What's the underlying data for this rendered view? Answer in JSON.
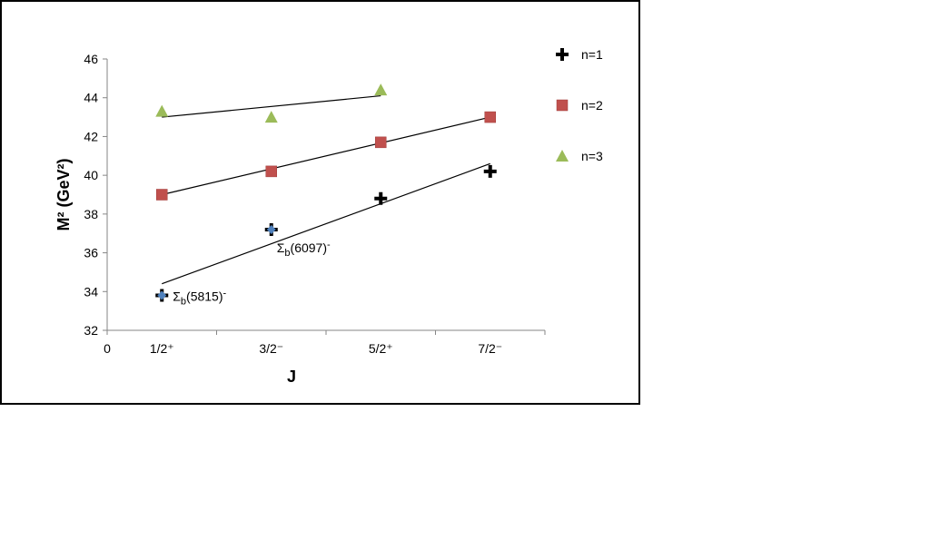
{
  "chart_data": {
    "type": "scatter",
    "xlabel": "J",
    "ylabel": "M² (GeV²)",
    "x_origin_label": "0",
    "categories": [
      "1/2⁺",
      "3/2⁻",
      "5/2⁺",
      "7/2⁻"
    ],
    "ylim": [
      32,
      46
    ],
    "yticks": [
      32,
      34,
      36,
      38,
      40,
      42,
      44,
      46
    ],
    "grid": false,
    "legend_position": "right",
    "series": [
      {
        "name": "n=1",
        "marker": "plus",
        "color": "#000000",
        "points": [
          {
            "x": "1/2⁺",
            "y": 33.8
          },
          {
            "x": "3/2⁻",
            "y": 37.2
          },
          {
            "x": "5/2⁺",
            "y": 38.8
          },
          {
            "x": "7/2⁻",
            "y": 40.2
          }
        ],
        "fit": [
          34.4,
          40.6
        ]
      },
      {
        "name": "n=2",
        "marker": "square",
        "color": "#c0504d",
        "points": [
          {
            "x": "1/2⁺",
            "y": 39.0
          },
          {
            "x": "3/2⁻",
            "y": 40.2
          },
          {
            "x": "5/2⁺",
            "y": 41.7
          },
          {
            "x": "7/2⁻",
            "y": 43.0
          }
        ],
        "fit": [
          39.0,
          43.0
        ]
      },
      {
        "name": "n=3",
        "marker": "triangle",
        "color": "#9bbb59",
        "points": [
          {
            "x": "1/2⁺",
            "y": 43.3
          },
          {
            "x": "3/2⁻",
            "y": 43.0
          },
          {
            "x": "5/2⁺",
            "y": 44.4
          }
        ],
        "fit": [
          43.0,
          44.1
        ]
      }
    ],
    "experimental_points": [
      {
        "x": "1/2⁺",
        "y": 33.8,
        "color": "#4f81bd"
      },
      {
        "x": "3/2⁻",
        "y": 37.2,
        "color": "#4f81bd"
      }
    ],
    "annotations": [
      {
        "base": "Σ",
        "sub": "b",
        "mass": "(5815)",
        "sup": "-",
        "x": "1/2⁺",
        "y": 33.8
      },
      {
        "base": "Σ",
        "sub": "b",
        "mass": "(6097)",
        "sup": "-",
        "x": "3/2⁻",
        "y": 37.2
      }
    ]
  }
}
